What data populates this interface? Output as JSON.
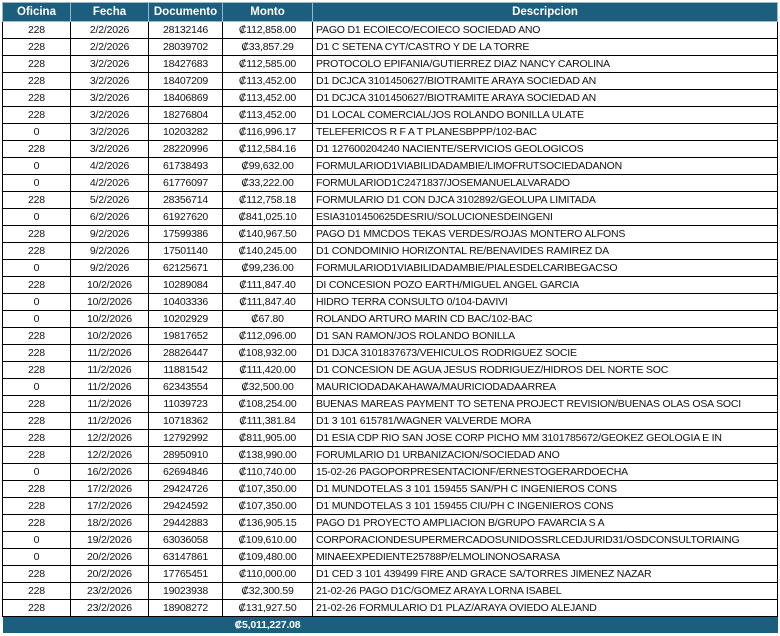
{
  "header": {
    "oficina": "Oficina",
    "fecha": "Fecha",
    "documento": "Documento",
    "monto": "Monto",
    "descripcion": "Descripcion"
  },
  "colors": {
    "header_bg": "#1b5e7e",
    "header_text": "#ffffff"
  },
  "rows": [
    {
      "oficina": "228",
      "fecha": "2/2/2026",
      "documento": "28132146",
      "monto": "₡112,858.00",
      "descripcion": "PAGO D1 ECOIECO/ECOIECO SOCIEDAD ANO"
    },
    {
      "oficina": "228",
      "fecha": "2/2/2026",
      "documento": "28039702",
      "monto": "₡33,857.29",
      "descripcion": "D1 C SETENA CYT/CASTRO Y DE LA TORRE"
    },
    {
      "oficina": "228",
      "fecha": "3/2/2026",
      "documento": "18427683",
      "monto": "₡112,585.00",
      "descripcion": "PROTOCOLO EPIFANIA/GUTIERREZ DIAZ NANCY CAROLINA"
    },
    {
      "oficina": "228",
      "fecha": "3/2/2026",
      "documento": "18407209",
      "monto": "₡113,452.00",
      "descripcion": "D1 DCJCA 3101450627/BIOTRAMITE ARAYA SOCIEDAD AN"
    },
    {
      "oficina": "228",
      "fecha": "3/2/2026",
      "documento": "18406869",
      "monto": "₡113,452.00",
      "descripcion": "D1 DCJCA 3101450627/BIOTRAMITE ARAYA SOCIEDAD AN"
    },
    {
      "oficina": "228",
      "fecha": "3/2/2026",
      "documento": "18276804",
      "monto": "₡113,452.00",
      "descripcion": "D1 LOCAL COMERCIAL/JOS ROLANDO BONILLA ULATE"
    },
    {
      "oficina": "0",
      "fecha": "3/2/2026",
      "documento": "10203282",
      "monto": "₡116,996.17",
      "descripcion": "TELEFERICOS R F A T PLANESBPPP/102-BAC"
    },
    {
      "oficina": "228",
      "fecha": "3/2/2026",
      "documento": "28220996",
      "monto": "₡112,584.16",
      "descripcion": "D1 127600204240 NACIENTE/SERVICIOS GEOLOGICOS"
    },
    {
      "oficina": "0",
      "fecha": "4/2/2026",
      "documento": "61738493",
      "monto": "₡99,632.00",
      "descripcion": "FORMULARIOD1VIABILIDADAMBIE/LIMOFRUTSOCIEDADANON"
    },
    {
      "oficina": "0",
      "fecha": "4/2/2026",
      "documento": "61776097",
      "monto": "₡33,222.00",
      "descripcion": "FORMULARIOD1C2471837/JOSEMANUELALVARADO"
    },
    {
      "oficina": "228",
      "fecha": "5/2/2026",
      "documento": "28356714",
      "monto": "₡112,758.18",
      "descripcion": "FORMULARIO D1 CON DJCA 3102892/GEOLUPA LIMITADA"
    },
    {
      "oficina": "0",
      "fecha": "6/2/2026",
      "documento": "61927620",
      "monto": "₡841,025.10",
      "descripcion": "ESIA3101450625DESRIU/SOLUCIONESDEINGENI"
    },
    {
      "oficina": "228",
      "fecha": "9/2/2026",
      "documento": "17599386",
      "monto": "₡140,967.50",
      "descripcion": "PAGO D1 MMCDOS TEKAS VERDES/ROJAS MONTERO ALFONS"
    },
    {
      "oficina": "228",
      "fecha": "9/2/2026",
      "documento": "17501140",
      "monto": "₡140,245.00",
      "descripcion": "D1 CONDOMINIO HORIZONTAL RE/BENAVIDES RAMIREZ DA"
    },
    {
      "oficina": "0",
      "fecha": "9/2/2026",
      "documento": "62125671",
      "monto": "₡99,236.00",
      "descripcion": "FORMULARIOD1VIABILIDADAMBIE/PIALESDELCARIBEGACSO"
    },
    {
      "oficina": "228",
      "fecha": "10/2/2026",
      "documento": "10289084",
      "monto": "₡111,847.40",
      "descripcion": "DI CONCESION POZO EARTH/MIGUEL ANGEL GARCIA"
    },
    {
      "oficina": "0",
      "fecha": "10/2/2026",
      "documento": "10403336",
      "monto": "₡111,847.40",
      "descripcion": "HIDRO TERRA CONSULTO 0/104-DAVIVI"
    },
    {
      "oficina": "0",
      "fecha": "10/2/2026",
      "documento": "10202929",
      "monto": "₡67.80",
      "descripcion": "ROLANDO ARTURO MARIN CD BAC/102-BAC"
    },
    {
      "oficina": "228",
      "fecha": "10/2/2026",
      "documento": "19817652",
      "monto": "₡112,096.00",
      "descripcion": "D1 SAN RAMON/JOS ROLANDO BONILLA"
    },
    {
      "oficina": "228",
      "fecha": "11/2/2026",
      "documento": "28826447",
      "monto": "₡108,932.00",
      "descripcion": "D1 DJCA 3101837673/VEHICULOS RODRIGUEZ SOCIE"
    },
    {
      "oficina": "228",
      "fecha": "11/2/2026",
      "documento": "11881542",
      "monto": "₡111,420.00",
      "descripcion": "D1 CONCESION DE AGUA JESUS RODRIGUEZ/HIDROS DEL NORTE SOC"
    },
    {
      "oficina": "0",
      "fecha": "11/2/2026",
      "documento": "62343554",
      "monto": "₡32,500.00",
      "descripcion": "MAURICIODADAKAHAWA/MAURICIODADAARREA"
    },
    {
      "oficina": "228",
      "fecha": "11/2/2026",
      "documento": "11039723",
      "monto": "₡108,254.00",
      "descripcion": "BUENAS MAREAS PAYMENT TO SETENA PROJECT REVISION/BUENAS OLAS OSA SOCI"
    },
    {
      "oficina": "228",
      "fecha": "11/2/2026",
      "documento": "10718362",
      "monto": "₡111,381.84",
      "descripcion": "D1 3 101 615781/WAGNER VALVERDE MORA"
    },
    {
      "oficina": "228",
      "fecha": "12/2/2026",
      "documento": "12792992",
      "monto": "₡811,905.00",
      "descripcion": "D1 ESIA CDP RIO SAN JOSE CORP PICHO MM 3101785672/GEOKEZ GEOLOGIA E IN"
    },
    {
      "oficina": "228",
      "fecha": "12/2/2026",
      "documento": "28950910",
      "monto": "₡138,990.00",
      "descripcion": "FORUMLARIO D1 URBANIZACION/SOCIEDAD ANO"
    },
    {
      "oficina": "0",
      "fecha": "16/2/2026",
      "documento": "62694846",
      "monto": "₡110,740.00",
      "descripcion": "15-02-26 PAGOPORPRESENTACIONF/ERNESTOGERARDOECHA"
    },
    {
      "oficina": "228",
      "fecha": "17/2/2026",
      "documento": "29424726",
      "monto": "₡107,350.00",
      "descripcion": "D1 MUNDOTELAS 3 101 159455 SAN/PH C INGENIEROS CONS"
    },
    {
      "oficina": "228",
      "fecha": "17/2/2026",
      "documento": "29424592",
      "monto": "₡107,350.00",
      "descripcion": "D1 MUNDOTELAS 3 101 159455 CIU/PH C INGENIEROS CONS"
    },
    {
      "oficina": "228",
      "fecha": "18/2/2026",
      "documento": "29442883",
      "monto": "₡136,905.15",
      "descripcion": "PAGO D1 PROYECTO AMPLIACION B/GRUPO FAVARCIA S A"
    },
    {
      "oficina": "0",
      "fecha": "19/2/2026",
      "documento": "63036058",
      "monto": "₡109,610.00",
      "descripcion": "CORPORACIONDESUPERMERCADOSUNIDOSSRLCEDJURID31/OSDCONSULTORIAING"
    },
    {
      "oficina": "0",
      "fecha": "20/2/2026",
      "documento": "63147861",
      "monto": "₡109,480.00",
      "descripcion": "MINAEEXPEDIENTE25788P/ELMOLINONOSARASA"
    },
    {
      "oficina": "228",
      "fecha": "20/2/2026",
      "documento": "17765451",
      "monto": "₡110,000.00",
      "descripcion": "D1 CED 3 101 439499 FIRE AND GRACE SA/TORRES JIMENEZ NAZAR"
    },
    {
      "oficina": "228",
      "fecha": "23/2/2026",
      "documento": "19023938",
      "monto": "₡32,300.59",
      "descripcion": "21-02-26 PAGO D1C/GOMEZ ARAYA LORNA ISABEL"
    },
    {
      "oficina": "228",
      "fecha": "23/2/2026",
      "documento": "18908272",
      "monto": "₡131,927.50",
      "descripcion": "21-02-26 FORMULARIO D1 PLAZ/ARAYA OVIEDO ALEJAND"
    }
  ],
  "total": {
    "monto": "₡5,011,227.08"
  }
}
